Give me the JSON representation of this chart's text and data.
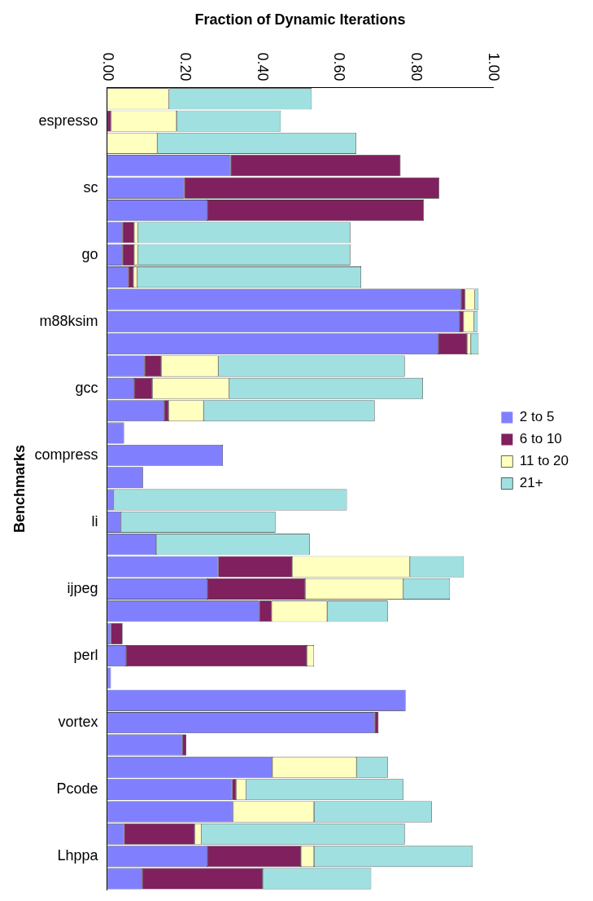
{
  "chart_data": {
    "type": "bar",
    "orientation": "horizontal",
    "stacked": true,
    "xlabel": "Fraction of Dynamic Iterations",
    "ylabel": "Benchmarks",
    "categories": [
      null,
      "espresso",
      null,
      null,
      "sc",
      null,
      null,
      "go",
      null,
      null,
      "m88ksim",
      null,
      null,
      "gcc",
      null,
      null,
      "compress",
      null,
      null,
      "li",
      null,
      null,
      "ijpeg",
      null,
      null,
      "perl",
      null,
      null,
      "vortex",
      null,
      null,
      "Pcode",
      null,
      null,
      "Lhppa",
      null
    ],
    "xlim": [
      0,
      1
    ],
    "xticks": [
      {
        "value": 0,
        "label": "0.00"
      },
      {
        "value": 0.2,
        "label": "0.20"
      },
      {
        "value": 0.4,
        "label": "0.40"
      },
      {
        "value": 0.6,
        "label": "0.60"
      },
      {
        "value": 0.8,
        "label": "0.80"
      },
      {
        "value": 1,
        "label": "1.00"
      }
    ],
    "grid": false,
    "legend": "right",
    "series": [
      {
        "name": "2 to 5",
        "color": "#8080ff",
        "values": [
          0,
          0,
          0,
          0.32,
          0.2,
          0.26,
          0.04,
          0.04,
          0.055,
          0.917,
          0.913,
          0.858,
          0.097,
          0.07,
          0.148,
          0.044,
          0.3,
          0.093,
          0.017,
          0.036,
          0.127,
          0.288,
          0.26,
          0.394,
          0.01,
          0.049,
          0.01,
          0.773,
          0.693,
          0.195,
          0.428,
          0.324,
          0.326,
          0.044,
          0.26,
          0.091
        ]
      },
      {
        "name": "6 to 10",
        "color": "#80205f",
        "values": [
          0,
          0.01,
          0,
          0.44,
          0.66,
          0.56,
          0.03,
          0.03,
          0.013,
          0.01,
          0.01,
          0.074,
          0.043,
          0.047,
          0.011,
          0,
          0,
          0,
          0,
          0,
          0,
          0.191,
          0.253,
          0.032,
          0.03,
          0.468,
          0,
          0,
          0.01,
          0.01,
          0,
          0.01,
          0,
          0.183,
          0.242,
          0.312
        ]
      },
      {
        "name": "11 to 20",
        "color": "#ffffc0",
        "values": [
          0.16,
          0.17,
          0.13,
          0,
          0,
          0,
          0.01,
          0.01,
          0.01,
          0.025,
          0.027,
          0.01,
          0.148,
          0.199,
          0.091,
          0,
          0,
          0,
          0,
          0,
          0,
          0.305,
          0.254,
          0.144,
          0,
          0.019,
          0,
          0,
          0,
          0,
          0.218,
          0.026,
          0.21,
          0.017,
          0.034,
          0
        ]
      },
      {
        "name": "21+",
        "color": "#a0e0e0",
        "values": [
          0.37,
          0.27,
          0.515,
          0,
          0,
          0,
          0.55,
          0.55,
          0.58,
          0.01,
          0.01,
          0.02,
          0.483,
          0.502,
          0.443,
          0,
          0,
          0,
          0.604,
          0.4,
          0.398,
          0.14,
          0.121,
          0.157,
          0,
          0,
          0,
          0,
          0,
          0,
          0.081,
          0.407,
          0.305,
          0.527,
          0.411,
          0.281
        ]
      }
    ]
  }
}
